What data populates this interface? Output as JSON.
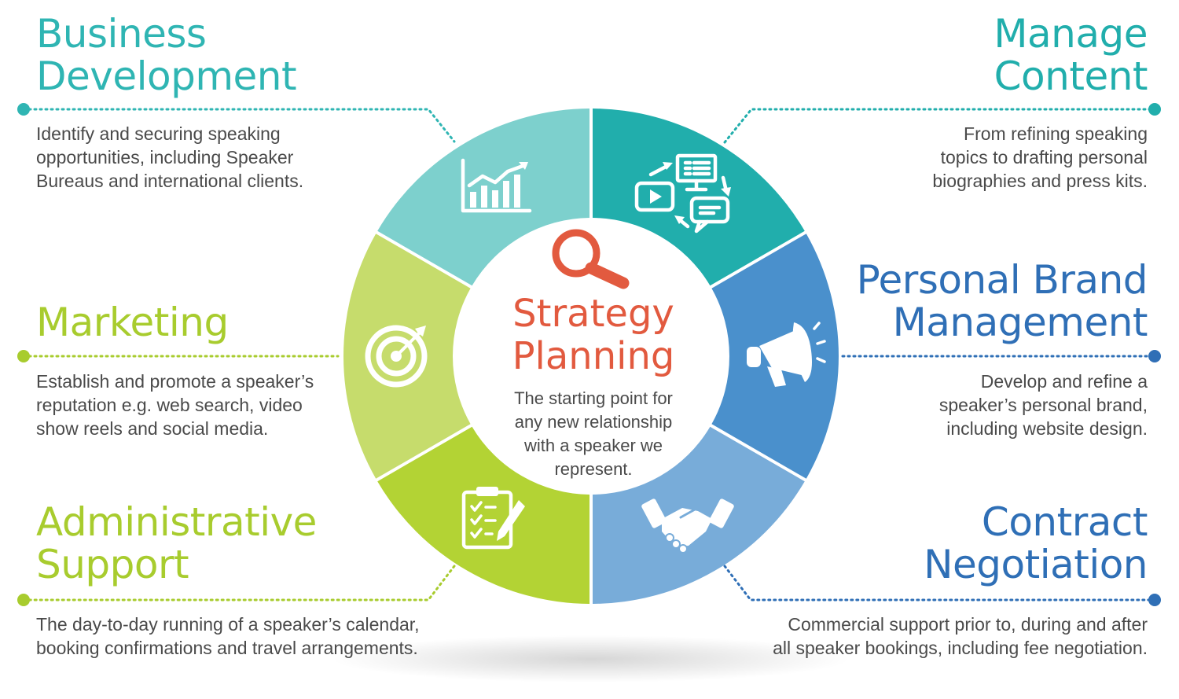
{
  "colors": {
    "business": "#7dd0cd",
    "content": "#21aeac",
    "brand": "#4a90cc",
    "contract": "#78acd9",
    "admin": "#b3d334",
    "marketing": "#c6dc6c",
    "title_business": "#2fb5b3",
    "title_content": "#21aeac",
    "title_brand": "#2f6fb6",
    "title_contract": "#2f6fb6",
    "title_admin": "#a8cc2e",
    "title_marketing": "#a8cc2e",
    "center_accent": "#e25a3f"
  },
  "center": {
    "icon": "magnifying-glass-icon",
    "title_line1": "Strategy",
    "title_line2": "Planning",
    "desc_lines": [
      "The starting point for",
      "any new relationship",
      "with a speaker we",
      "represent."
    ]
  },
  "segments": [
    {
      "key": "business",
      "icon": "bar-chart-growth-icon",
      "title_lines": [
        "Business",
        "Development"
      ],
      "desc_lines": [
        "Identify and securing speaking",
        "opportunities, including Speaker",
        "Bureaus and international clients."
      ]
    },
    {
      "key": "content",
      "icon": "content-sharing-icon",
      "title_lines": [
        "Manage",
        "Content"
      ],
      "desc_lines": [
        "From refining speaking",
        "topics to drafting personal",
        "biographies and press kits."
      ]
    },
    {
      "key": "brand",
      "icon": "megaphone-icon",
      "title_lines": [
        "Personal Brand",
        "Management"
      ],
      "desc_lines": [
        "Develop and refine a",
        "speaker’s personal brand,",
        "including website design."
      ]
    },
    {
      "key": "contract",
      "icon": "handshake-icon",
      "title_lines": [
        "Contract",
        "Negotiation"
      ],
      "desc_lines": [
        "Commercial support prior to, during and after",
        "all speaker bookings, including fee negotiation."
      ]
    },
    {
      "key": "admin",
      "icon": "clipboard-checklist-icon",
      "title_lines": [
        "Administrative",
        "Support"
      ],
      "desc_lines": [
        "The day-to-day running of a speaker’s calendar,",
        "booking confirmations and travel arrangements."
      ]
    },
    {
      "key": "marketing",
      "icon": "target-icon",
      "title_lines": [
        "Marketing"
      ],
      "desc_lines": [
        "Establish and promote a speaker’s",
        "reputation e.g. web search, video",
        "show reels and social media."
      ]
    }
  ]
}
